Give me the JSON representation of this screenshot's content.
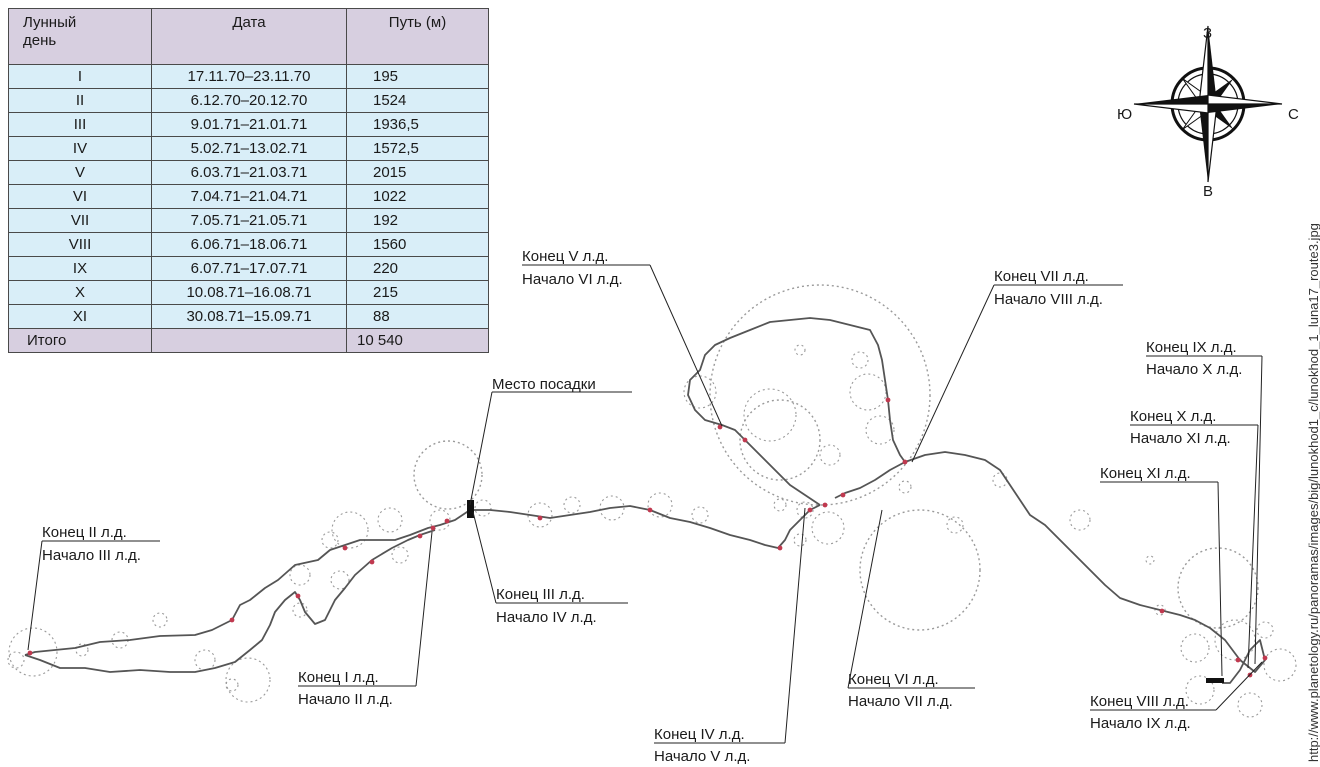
{
  "table": {
    "headers": [
      "Лунный\nдень",
      "Дата",
      "Путь (м)"
    ],
    "rows": [
      {
        "day": "I",
        "date": "17.11.70–23.11.70",
        "distance": "195"
      },
      {
        "day": "II",
        "date": "6.12.70–20.12.70",
        "distance": "1524"
      },
      {
        "day": "III",
        "date": "9.01.71–21.01.71",
        "distance": "1936,5"
      },
      {
        "day": "IV",
        "date": "5.02.71–13.02.71",
        "distance": "1572,5"
      },
      {
        "day": "V",
        "date": "6.03.71–21.03.71",
        "distance": "2015"
      },
      {
        "day": "VI",
        "date": "7.04.71–21.04.71",
        "distance": "1022"
      },
      {
        "day": "VII",
        "date": "7.05.71–21.05.71",
        "distance": "192"
      },
      {
        "day": "VIII",
        "date": "6.06.71–18.06.71",
        "distance": "1560"
      },
      {
        "day": "IX",
        "date": "6.07.71–17.07.71",
        "distance": "220"
      },
      {
        "day": "X",
        "date": "10.08.71–16.08.71",
        "distance": "215"
      },
      {
        "day": "XI",
        "date": "30.08.71–15.09.71",
        "distance": "88"
      }
    ],
    "total": {
      "label": "Итого",
      "date": "",
      "distance": "10 540"
    }
  },
  "compass": {
    "north": "З",
    "east": "С",
    "south": "В",
    "west": "Ю"
  },
  "labels": {
    "landing": "Место посадки",
    "end_1": "Конец I л.д.",
    "start_2": "Начало II л.д.",
    "end_2": "Конец II л.д.",
    "start_3": "Начало III л.д.",
    "end_3": "Конец III л.д.",
    "start_4": "Начало IV л.д.",
    "end_4": "Конец IV л.д.",
    "start_5": "Начало V л.д.",
    "end_5": "Конец V л.д.",
    "start_6": "Начало VI л.д.",
    "end_6": "Конец VI л.д.",
    "start_7": "Начало VII л.д.",
    "end_7": "Конец VII л.д.",
    "start_8": "Начало VIII л.д.",
    "end_8": "Конец VIII л.д.",
    "start_9": "Начало IX л.д.",
    "end_9": "Конец IX л.д.",
    "start_10": "Начало X л.д.",
    "end_10": "Конец X л.д.",
    "start_11": "Начало XI л.д.",
    "end_11": "Конец XI л.д."
  },
  "credit": "http://www.planetology.ru/panoramas/images/big/lunokhod1_c/lunokhod_1_luna17_route3.jpg",
  "colors": {
    "route": "#555555",
    "stop": "#c0394f",
    "table_header": "#d7cfe0",
    "table_cell": "#d9eef8"
  }
}
